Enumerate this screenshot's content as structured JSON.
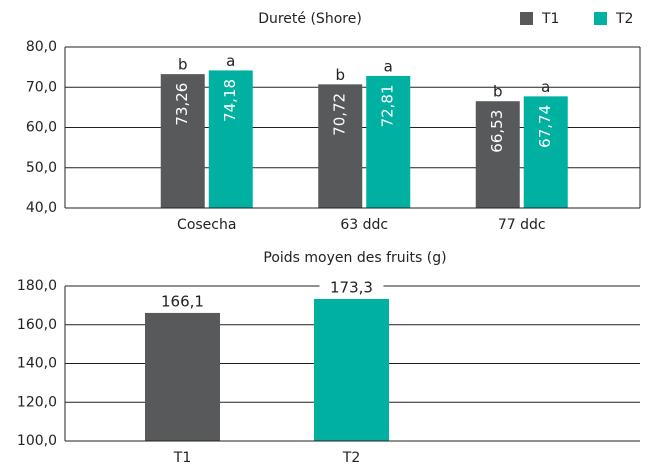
{
  "chart_data": [
    {
      "type": "bar",
      "title": "Dureté (Shore)",
      "categories": [
        "Cosecha",
        "63 ddc",
        "77 ddc"
      ],
      "series": [
        {
          "name": "T1",
          "color": "#58595b",
          "values": [
            73.26,
            70.72,
            66.53
          ],
          "value_labels": [
            "73,26",
            "70,72",
            "66,53"
          ],
          "letters": [
            "b",
            "b",
            "b"
          ]
        },
        {
          "name": "T2",
          "color": "#00b0a0",
          "values": [
            74.18,
            72.81,
            67.74
          ],
          "value_labels": [
            "74,18",
            "72,81",
            "67,74"
          ],
          "letters": [
            "a",
            "a",
            "a"
          ]
        }
      ],
      "ylim": [
        40,
        80
      ],
      "yticks": [
        {
          "value": 40,
          "label": "40,0"
        },
        {
          "value": 50,
          "label": "50,0"
        },
        {
          "value": 60,
          "label": "60,0"
        },
        {
          "value": 70,
          "label": "70,0"
        },
        {
          "value": 80,
          "label": "80,0"
        }
      ],
      "grid": true,
      "legend": "top-right"
    },
    {
      "type": "bar",
      "title": "Poids moyen des fruits (g)",
      "categories": [
        "T1",
        "T2"
      ],
      "values": [
        166.1,
        173.3
      ],
      "value_labels": [
        "166,1",
        "173,3"
      ],
      "colors": [
        "#58595b",
        "#00b0a0"
      ],
      "ylim": [
        100,
        180
      ],
      "yticks": [
        {
          "value": 100,
          "label": "100,0"
        },
        {
          "value": 120,
          "label": "120,0"
        },
        {
          "value": 140,
          "label": "140,0"
        },
        {
          "value": 160,
          "label": "160,0"
        },
        {
          "value": 180,
          "label": "180,0"
        }
      ],
      "grid": true
    }
  ]
}
